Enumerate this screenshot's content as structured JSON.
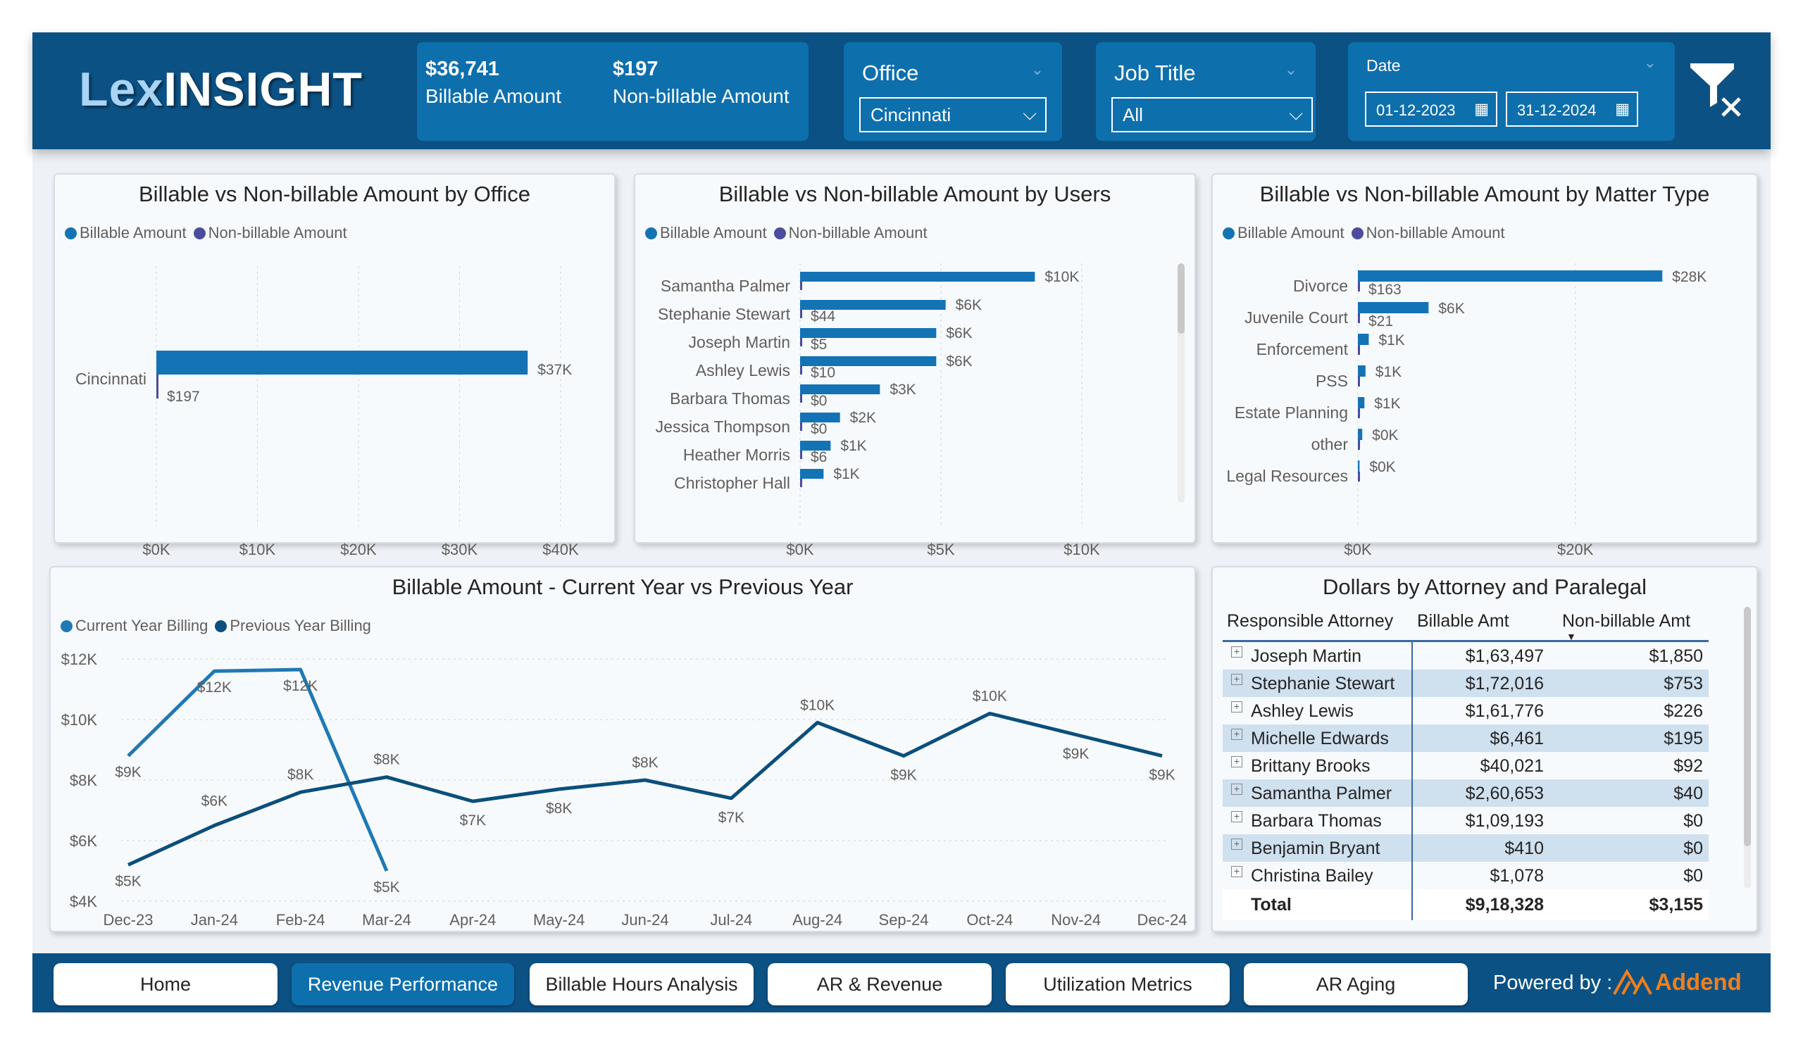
{
  "app": {
    "logo_part1": "Lex",
    "logo_part2": "INSIGHT"
  },
  "kpis": [
    {
      "value": "$36,741",
      "label": "Billable Amount"
    },
    {
      "value": "$197",
      "label": "Non-billable Amount"
    }
  ],
  "slicers": {
    "office": {
      "title": "Office",
      "value": "Cincinnati"
    },
    "job_title": {
      "title": "Job Title",
      "value": "All"
    },
    "date": {
      "title": "Date",
      "from": "01-12-2023",
      "to": "31-12-2024"
    }
  },
  "icons": {
    "clear_filter": "funnel-x-icon",
    "calendar": "calendar-icon",
    "chevron": "chevron-down-icon",
    "expand": "plus-square-icon",
    "logo_mark": "addend-logo-icon"
  },
  "colors": {
    "header": "#0c5184",
    "billable": "#1373b4",
    "non_billable": "#4b4d9c",
    "current_year": "#1f79b4",
    "previous_year": "#0b4f7c",
    "accent_orange": "#f07f1a"
  },
  "chart_data": [
    {
      "id": "office",
      "type": "bar",
      "orientation": "horizontal",
      "title": "Billable vs Non-billable Amount by Office",
      "legend": [
        "Billable Amount",
        "Non-billable Amount"
      ],
      "categories": [
        "Cincinnati"
      ],
      "series": [
        {
          "name": "Billable Amount",
          "values": [
            36741
          ],
          "labels": [
            "$37K"
          ]
        },
        {
          "name": "Non-billable Amount",
          "values": [
            197
          ],
          "labels": [
            "$197"
          ]
        }
      ],
      "xlim": [
        0,
        40000
      ],
      "xticks": [
        "$0K",
        "$10K",
        "$20K",
        "$30K",
        "$40K"
      ],
      "grid": true
    },
    {
      "id": "users",
      "type": "bar",
      "orientation": "horizontal",
      "title": "Billable vs Non-billable Amount by Users",
      "legend": [
        "Billable Amount",
        "Non-billable Amount"
      ],
      "categories": [
        "Samantha Palmer",
        "Stephanie Stewart",
        "Joseph Martin",
        "Ashley Lewis",
        "Barbara Thomas",
        "Jessica Thompson",
        "Heather Morris",
        "Christopher Hall"
      ],
      "series": [
        {
          "name": "Billable Amount",
          "values": [
            10000,
            6200,
            5800,
            5800,
            3400,
            1700,
            1300,
            1000
          ],
          "labels": [
            "$10K",
            "$6K",
            "$6K",
            "$6K",
            "$3K",
            "$2K",
            "$1K",
            "$1K"
          ]
        },
        {
          "name": "Non-billable Amount",
          "values": [
            40,
            44,
            5,
            10,
            0,
            0,
            6,
            0
          ],
          "labels": [
            "",
            "$44",
            "$5",
            "$10",
            "$0",
            "$0",
            "$6",
            ""
          ]
        }
      ],
      "xlim": [
        0,
        12000
      ],
      "xticks": [
        "$0K",
        "$5K",
        "$10K"
      ],
      "grid": true
    },
    {
      "id": "matter",
      "type": "bar",
      "orientation": "horizontal",
      "title": "Billable vs Non-billable Amount by Matter Type",
      "legend": [
        "Billable Amount",
        "Non-billable Amount"
      ],
      "categories": [
        "Divorce",
        "Juvenile Court",
        "Enforcement",
        "PSS",
        "Estate Planning",
        "other",
        "Legal Resources"
      ],
      "series": [
        {
          "name": "Billable Amount",
          "values": [
            28000,
            6500,
            1000,
            700,
            600,
            400,
            150
          ],
          "labels": [
            "$28K",
            "$6K",
            "$1K",
            "$1K",
            "$1K",
            "$0K",
            "$0K"
          ]
        },
        {
          "name": "Non-billable Amount",
          "values": [
            163,
            21,
            0,
            0,
            0,
            0,
            0
          ],
          "labels": [
            "$163",
            "$21",
            "",
            "",
            "",
            "",
            ""
          ]
        }
      ],
      "xlim": [
        0,
        32000
      ],
      "xticks": [
        "$0K",
        "$20K"
      ],
      "grid": true
    },
    {
      "id": "yoy",
      "type": "line",
      "title": "Billable Amount - Current Year vs Previous Year",
      "legend": [
        "Current Year Billing",
        "Previous Year Billing"
      ],
      "categories": [
        "Dec-23",
        "Jan-24",
        "Feb-24",
        "Mar-24",
        "Apr-24",
        "May-24",
        "Jun-24",
        "Jul-24",
        "Aug-24",
        "Sep-24",
        "Oct-24",
        "Nov-24",
        "Dec-24"
      ],
      "series": [
        {
          "name": "Current Year Billing",
          "values": [
            8800,
            11600,
            11650,
            5000,
            null,
            null,
            null,
            null,
            null,
            null,
            null,
            null,
            null
          ],
          "labels": [
            "$9K",
            "$12K",
            "$12K",
            "$5K",
            "",
            "",
            "",
            "",
            "",
            "",
            "",
            "",
            ""
          ]
        },
        {
          "name": "Previous Year Billing",
          "values": [
            5200,
            6500,
            7600,
            8100,
            7300,
            7700,
            8000,
            7400,
            9900,
            8800,
            10200,
            9500,
            8800
          ],
          "labels": [
            "$5K",
            "$6K",
            "$8K",
            "$8K",
            "$7K",
            "$8K",
            "$8K",
            "$7K",
            "$10K",
            "$9K",
            "$10K",
            "$9K",
            "$9K"
          ]
        }
      ],
      "ylim": [
        4000,
        12000
      ],
      "yticks": [
        "$4K",
        "$6K",
        "$8K",
        "$10K",
        "$12K"
      ],
      "grid": true
    }
  ],
  "table": {
    "title": "Dollars by Attorney and Paralegal",
    "columns": [
      "Responsible Attorney",
      "Billable Amt",
      "Non-billable Amt"
    ],
    "rows": [
      {
        "name": "Joseph Martin",
        "billable": "$1,63,497",
        "non_billable": "$1,850"
      },
      {
        "name": "Stephanie Stewart",
        "billable": "$1,72,016",
        "non_billable": "$753"
      },
      {
        "name": "Ashley Lewis",
        "billable": "$1,61,776",
        "non_billable": "$226"
      },
      {
        "name": "Michelle Edwards",
        "billable": "$6,461",
        "non_billable": "$195"
      },
      {
        "name": "Brittany Brooks",
        "billable": "$40,021",
        "non_billable": "$92"
      },
      {
        "name": "Samantha Palmer",
        "billable": "$2,60,653",
        "non_billable": "$40"
      },
      {
        "name": "Barbara Thomas",
        "billable": "$1,09,193",
        "non_billable": "$0"
      },
      {
        "name": "Benjamin Bryant",
        "billable": "$410",
        "non_billable": "$0"
      },
      {
        "name": "Christina Bailey",
        "billable": "$1,078",
        "non_billable": "$0"
      }
    ],
    "total": {
      "label": "Total",
      "billable": "$9,18,328",
      "non_billable": "$3,155"
    }
  },
  "nav": {
    "buttons": [
      "Home",
      "Revenue Performance",
      "Billable Hours Analysis",
      "AR & Revenue",
      "Utilization Metrics",
      "AR Aging"
    ],
    "active_index": 1,
    "powered_by": "Powered by :",
    "brand": "Addend"
  }
}
